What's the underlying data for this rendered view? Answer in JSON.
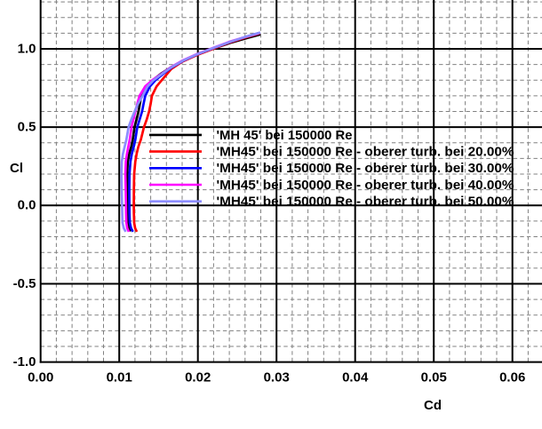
{
  "chart_data": {
    "type": "line",
    "title": "",
    "xlabel": "Cd",
    "ylabel": "Cl",
    "xlim": [
      0.0,
      0.0638
    ],
    "ylim": [
      -1.0,
      1.305
    ],
    "grid": {
      "x_major_step": 0.01,
      "x_minor_step": 0.002,
      "y_major_step": 0.5,
      "y_minor_step": 0.1,
      "major_color": "#000000",
      "minor_color": "#808080",
      "minor_dash": "4.4 3.2"
    },
    "x_ticks": [
      {
        "value": 0.0,
        "label": "0.00"
      },
      {
        "value": 0.01,
        "label": "0.01"
      },
      {
        "value": 0.02,
        "label": "0.02"
      },
      {
        "value": 0.03,
        "label": "0.03"
      },
      {
        "value": 0.04,
        "label": "0.04"
      },
      {
        "value": 0.05,
        "label": "0.05"
      },
      {
        "value": 0.06,
        "label": "0.06"
      }
    ],
    "y_ticks": [
      {
        "value": 1.0,
        "label": "1.0"
      },
      {
        "value": 0.5,
        "label": "0.5"
      },
      {
        "value": 0.0,
        "label": "0.0"
      },
      {
        "value": -0.5,
        "label": "-0.5"
      },
      {
        "value": -1.0,
        "label": "-1.0"
      }
    ],
    "legend_position": "inside-middle-right",
    "series": [
      {
        "name": "'MH 45' bei 150000 Re",
        "color": "#000000",
        "points": [
          [
            0.01148,
            -0.165
          ],
          [
            0.01125,
            -0.143
          ],
          [
            0.01112,
            -0.11
          ],
          [
            0.01109,
            -0.05
          ],
          [
            0.01108,
            0.0
          ],
          [
            0.01104,
            0.1
          ],
          [
            0.011,
            0.2
          ],
          [
            0.01108,
            0.28
          ],
          [
            0.01128,
            0.33
          ],
          [
            0.01153,
            0.375
          ],
          [
            0.01172,
            0.42
          ],
          [
            0.01194,
            0.5
          ],
          [
            0.0122,
            0.55
          ],
          [
            0.01245,
            0.6
          ],
          [
            0.01262,
            0.65
          ],
          [
            0.0128,
            0.7
          ],
          [
            0.0134,
            0.76
          ],
          [
            0.01425,
            0.8
          ],
          [
            0.0153,
            0.841
          ],
          [
            0.0165,
            0.88
          ],
          [
            0.01795,
            0.921
          ],
          [
            0.01985,
            0.962
          ],
          [
            0.02218,
            1.005
          ],
          [
            0.02425,
            1.04
          ],
          [
            0.02625,
            1.069
          ],
          [
            0.02794,
            1.092
          ]
        ]
      },
      {
        "name": "'MH45' bei 150000 Re - oberer turb. bei 20.00%",
        "color": "#ff0000",
        "points": [
          [
            0.01224,
            -0.168
          ],
          [
            0.01202,
            -0.145
          ],
          [
            0.0119,
            -0.11
          ],
          [
            0.01186,
            -0.05
          ],
          [
            0.01185,
            0.0
          ],
          [
            0.01186,
            0.1
          ],
          [
            0.0119,
            0.2
          ],
          [
            0.01205,
            0.28
          ],
          [
            0.01222,
            0.33
          ],
          [
            0.01243,
            0.375
          ],
          [
            0.01275,
            0.42
          ],
          [
            0.01314,
            0.5
          ],
          [
            0.0135,
            0.55
          ],
          [
            0.0138,
            0.6
          ],
          [
            0.014,
            0.65
          ],
          [
            0.01416,
            0.7
          ],
          [
            0.01475,
            0.76
          ],
          [
            0.0154,
            0.8
          ],
          [
            0.01605,
            0.838
          ],
          [
            0.01662,
            0.872
          ],
          [
            0.018,
            0.918
          ],
          [
            0.0199,
            0.961
          ],
          [
            0.02215,
            1.004
          ],
          [
            0.02407,
            1.041
          ],
          [
            0.026,
            1.072
          ],
          [
            0.0279,
            1.1
          ]
        ]
      },
      {
        "name": "'MH45' bei 150000 Re - oberer turb. bei 30.00%",
        "color": "#0000ff",
        "points": [
          [
            0.01174,
            -0.168
          ],
          [
            0.0115,
            -0.145
          ],
          [
            0.01135,
            -0.11
          ],
          [
            0.0113,
            -0.05
          ],
          [
            0.01129,
            0.0
          ],
          [
            0.01128,
            0.1
          ],
          [
            0.0113,
            0.2
          ],
          [
            0.01142,
            0.28
          ],
          [
            0.0116,
            0.33
          ],
          [
            0.01184,
            0.375
          ],
          [
            0.01205,
            0.42
          ],
          [
            0.01229,
            0.5
          ],
          [
            0.0126,
            0.55
          ],
          [
            0.0129,
            0.6
          ],
          [
            0.0131,
            0.65
          ],
          [
            0.01331,
            0.7
          ],
          [
            0.0139,
            0.76
          ],
          [
            0.0146,
            0.8
          ],
          [
            0.01555,
            0.839
          ],
          [
            0.0167,
            0.882
          ],
          [
            0.01812,
            0.924
          ],
          [
            0.01997,
            0.966
          ],
          [
            0.0222,
            1.009
          ],
          [
            0.02413,
            1.045
          ],
          [
            0.02605,
            1.076
          ],
          [
            0.0279,
            1.103
          ]
        ]
      },
      {
        "name": "'MH45' bei 150000 Re - oberer turb. bei 40.00%",
        "color": "#ff00ff",
        "points": [
          [
            0.01122,
            -0.168
          ],
          [
            0.01102,
            -0.145
          ],
          [
            0.0109,
            -0.11
          ],
          [
            0.01087,
            -0.05
          ],
          [
            0.01086,
            0.0
          ],
          [
            0.01082,
            0.1
          ],
          [
            0.01078,
            0.2
          ],
          [
            0.01084,
            0.28
          ],
          [
            0.01098,
            0.33
          ],
          [
            0.01115,
            0.375
          ],
          [
            0.01133,
            0.42
          ],
          [
            0.01156,
            0.5
          ],
          [
            0.0118,
            0.55
          ],
          [
            0.01205,
            0.6
          ],
          [
            0.0123,
            0.65
          ],
          [
            0.01258,
            0.7
          ],
          [
            0.0133,
            0.76
          ],
          [
            0.0142,
            0.8
          ],
          [
            0.01535,
            0.839
          ],
          [
            0.01655,
            0.882
          ],
          [
            0.018,
            0.924
          ],
          [
            0.01985,
            0.966
          ],
          [
            0.0221,
            1.009
          ],
          [
            0.024,
            1.045
          ],
          [
            0.0259,
            1.074
          ],
          [
            0.0277,
            1.098
          ]
        ]
      },
      {
        "name": "'MH45' bei 150000 Re - oberer turb. bei 50.00%",
        "color": "#8c8cff",
        "points": [
          [
            0.01083,
            -0.168
          ],
          [
            0.01058,
            -0.145
          ],
          [
            0.01042,
            -0.11
          ],
          [
            0.01038,
            -0.05
          ],
          [
            0.01036,
            0.0
          ],
          [
            0.01032,
            0.1
          ],
          [
            0.01028,
            0.2
          ],
          [
            0.01033,
            0.28
          ],
          [
            0.01048,
            0.33
          ],
          [
            0.01069,
            0.375
          ],
          [
            0.0109,
            0.42
          ],
          [
            0.01119,
            0.5
          ],
          [
            0.01155,
            0.55
          ],
          [
            0.01195,
            0.6
          ],
          [
            0.0124,
            0.65
          ],
          [
            0.01297,
            0.7
          ],
          [
            0.0136,
            0.76
          ],
          [
            0.01435,
            0.8
          ],
          [
            0.01541,
            0.839
          ],
          [
            0.01662,
            0.882
          ],
          [
            0.01807,
            0.924
          ],
          [
            0.01992,
            0.966
          ],
          [
            0.02216,
            1.009
          ],
          [
            0.02409,
            1.045
          ],
          [
            0.02601,
            1.076
          ],
          [
            0.02794,
            1.104
          ]
        ]
      }
    ]
  }
}
